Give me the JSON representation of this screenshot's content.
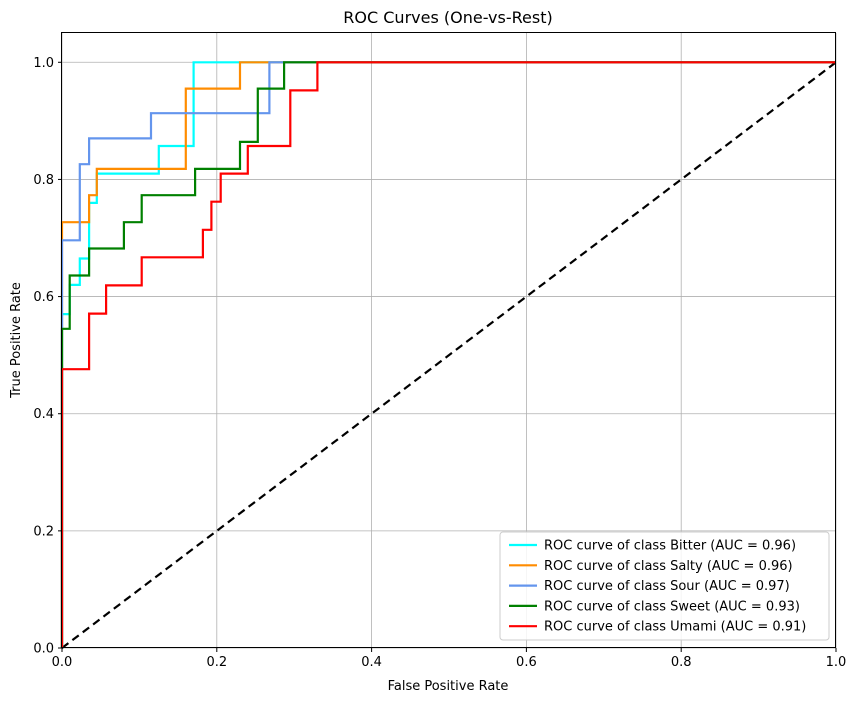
{
  "chart_data": {
    "type": "line",
    "title": "ROC Curves (One-vs-Rest)",
    "xlabel": "False Positive Rate",
    "ylabel": "True Positive Rate",
    "xlim": [
      0,
      1
    ],
    "ylim": [
      0,
      1.05
    ],
    "xticks": [
      0.0,
      0.2,
      0.4,
      0.6,
      0.8,
      1.0
    ],
    "yticks": [
      0.0,
      0.2,
      0.4,
      0.6,
      0.8,
      1.0
    ],
    "xtick_labels": [
      "0.0",
      "0.2",
      "0.4",
      "0.6",
      "0.8",
      "1.0"
    ],
    "ytick_labels": [
      "0.0",
      "0.2",
      "0.4",
      "0.6",
      "0.8",
      "1.0"
    ],
    "grid": true,
    "legend_position": "bottom-right",
    "chance_line": {
      "x": [
        0,
        1
      ],
      "y": [
        0,
        1
      ],
      "color": "#000000",
      "style": "dashed"
    },
    "series": [
      {
        "name": "ROC curve of class Bitter (AUC = 0.96)",
        "color": "#00ffff",
        "x": [
          0,
          0,
          0.01,
          0.01,
          0.023,
          0.023,
          0.035,
          0.035,
          0.045,
          0.045,
          0.125,
          0.125,
          0.17,
          0.17,
          1.0
        ],
        "y": [
          0,
          0.57,
          0.57,
          0.62,
          0.62,
          0.665,
          0.665,
          0.76,
          0.76,
          0.81,
          0.81,
          0.857,
          0.857,
          1.0,
          1.0
        ]
      },
      {
        "name": "ROC curve of class Salty (AUC = 0.96)",
        "color": "#ff8c00",
        "x": [
          0,
          0,
          0.035,
          0.035,
          0.045,
          0.045,
          0.16,
          0.16,
          0.23,
          0.23,
          1.0
        ],
        "y": [
          0,
          0.727,
          0.727,
          0.773,
          0.773,
          0.818,
          0.818,
          0.955,
          0.955,
          1.0,
          1.0
        ]
      },
      {
        "name": "ROC curve of class Sour (AUC = 0.97)",
        "color": "#6495ed",
        "x": [
          0,
          0,
          0.023,
          0.023,
          0.035,
          0.035,
          0.115,
          0.115,
          0.268,
          0.268,
          1.0
        ],
        "y": [
          0,
          0.696,
          0.696,
          0.826,
          0.826,
          0.87,
          0.87,
          0.913,
          0.913,
          1.0,
          1.0
        ]
      },
      {
        "name": "ROC curve of class Sweet (AUC = 0.93)",
        "color": "#008000",
        "x": [
          0,
          0,
          0.01,
          0.01,
          0.035,
          0.035,
          0.08,
          0.08,
          0.103,
          0.103,
          0.172,
          0.172,
          0.23,
          0.23,
          0.253,
          0.253,
          0.287,
          0.287,
          1.0
        ],
        "y": [
          0,
          0.545,
          0.545,
          0.636,
          0.636,
          0.682,
          0.682,
          0.727,
          0.727,
          0.773,
          0.773,
          0.818,
          0.818,
          0.864,
          0.864,
          0.955,
          0.955,
          1.0,
          1.0
        ]
      },
      {
        "name": "ROC curve of class Umami (AUC = 0.91)",
        "color": "#ff0000",
        "x": [
          0,
          0,
          0.035,
          0.035,
          0.057,
          0.057,
          0.103,
          0.103,
          0.182,
          0.182,
          0.193,
          0.193,
          0.205,
          0.205,
          0.24,
          0.24,
          0.295,
          0.295,
          0.33,
          0.33,
          1.0
        ],
        "y": [
          0,
          0.476,
          0.476,
          0.571,
          0.571,
          0.619,
          0.619,
          0.667,
          0.667,
          0.714,
          0.714,
          0.762,
          0.762,
          0.81,
          0.81,
          0.857,
          0.857,
          0.952,
          0.952,
          1.0,
          1.0
        ]
      }
    ]
  }
}
